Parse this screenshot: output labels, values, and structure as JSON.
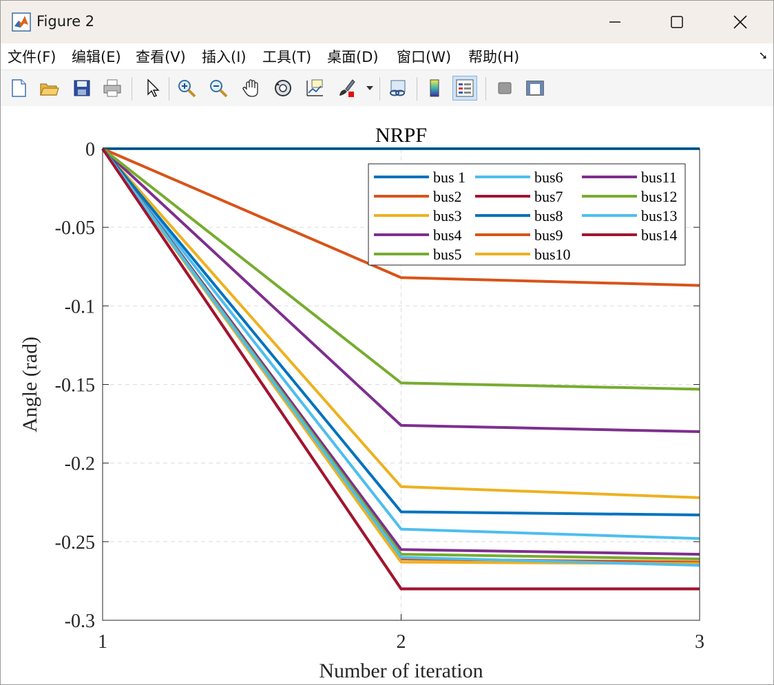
{
  "window": {
    "title": "Figure 2",
    "controls": [
      "minimize-icon",
      "maximize-icon",
      "close-icon"
    ]
  },
  "menu": {
    "items": [
      "文件(F)",
      "编辑(E)",
      "查看(V)",
      "插入(I)",
      "工具(T)",
      "桌面(D)",
      "窗口(W)",
      "帮助(H)"
    ],
    "overflow_icon": "menu-overflow-arrow-icon"
  },
  "toolbar": {
    "buttons": [
      {
        "icon": "new-figure-icon"
      },
      {
        "icon": "open-file-icon"
      },
      {
        "icon": "save-icon"
      },
      {
        "icon": "print-icon"
      },
      {
        "icon": "pointer-icon"
      },
      {
        "icon": "zoom-in-icon"
      },
      {
        "icon": "zoom-out-icon"
      },
      {
        "icon": "pan-hand-icon"
      },
      {
        "icon": "rotate-3d-icon"
      },
      {
        "icon": "data-cursor-icon"
      },
      {
        "icon": "brush-icon"
      },
      {
        "icon": "link-plot-icon"
      },
      {
        "icon": "colorbar-icon"
      },
      {
        "icon": "legend-icon",
        "active": true
      },
      {
        "icon": "hide-plot-tools-icon"
      },
      {
        "icon": "show-plot-tools-icon"
      }
    ]
  },
  "colors": {
    "blue": "#0072BD",
    "orange": "#D95319",
    "yellow": "#EDB120",
    "purple": "#7E2F8E",
    "green": "#77AC30",
    "cyan": "#4DBEEE",
    "maroon": "#A2142F"
  },
  "chart_data": {
    "type": "line",
    "title": "NRPF",
    "xlabel": "Number of iteration",
    "ylabel": "Angle (rad)",
    "xlim": [
      1,
      3
    ],
    "ylim": [
      -0.3,
      0
    ],
    "xticks": [
      1,
      2,
      3
    ],
    "xtick_labels": [
      "1",
      "2",
      "3"
    ],
    "yticks": [
      0,
      -0.05,
      -0.1,
      -0.15,
      -0.2,
      -0.25,
      -0.3
    ],
    "ytick_labels": [
      "0",
      "-0.05",
      "-0.1",
      "-0.15",
      "-0.2",
      "-0.25",
      "-0.3"
    ],
    "grid": true,
    "legend_position": "top-right",
    "legend_columns": 3,
    "x": [
      1,
      2,
      3
    ],
    "series": [
      {
        "name": "bus 1",
        "color": "#0072BD",
        "values": [
          0,
          0,
          0
        ]
      },
      {
        "name": "bus2",
        "color": "#D95319",
        "values": [
          0,
          -0.082,
          -0.087
        ]
      },
      {
        "name": "bus3",
        "color": "#EDB120",
        "values": [
          0,
          -0.215,
          -0.222
        ]
      },
      {
        "name": "bus4",
        "color": "#7E2F8E",
        "values": [
          0,
          -0.176,
          -0.18
        ]
      },
      {
        "name": "bus5",
        "color": "#77AC30",
        "values": [
          0,
          -0.149,
          -0.153
        ]
      },
      {
        "name": "bus6",
        "color": "#4DBEEE",
        "values": [
          0,
          -0.242,
          -0.248
        ]
      },
      {
        "name": "bus7",
        "color": "#A2142F",
        "values": [
          0,
          -0.28,
          -0.28
        ]
      },
      {
        "name": "bus8",
        "color": "#0072BD",
        "values": [
          0,
          -0.231,
          -0.233
        ]
      },
      {
        "name": "bus9",
        "color": "#D95319",
        "values": [
          0,
          -0.261,
          -0.263
        ]
      },
      {
        "name": "bus10",
        "color": "#EDB120",
        "values": [
          0,
          -0.263,
          -0.264
        ]
      },
      {
        "name": "bus11",
        "color": "#7E2F8E",
        "values": [
          0,
          -0.255,
          -0.258
        ]
      },
      {
        "name": "bus12",
        "color": "#77AC30",
        "values": [
          0,
          -0.258,
          -0.261
        ]
      },
      {
        "name": "bus13",
        "color": "#4DBEEE",
        "values": [
          0,
          -0.26,
          -0.265
        ]
      },
      {
        "name": "bus14",
        "color": "#A2142F",
        "values": [
          0,
          -0.28,
          -0.28
        ]
      }
    ]
  }
}
